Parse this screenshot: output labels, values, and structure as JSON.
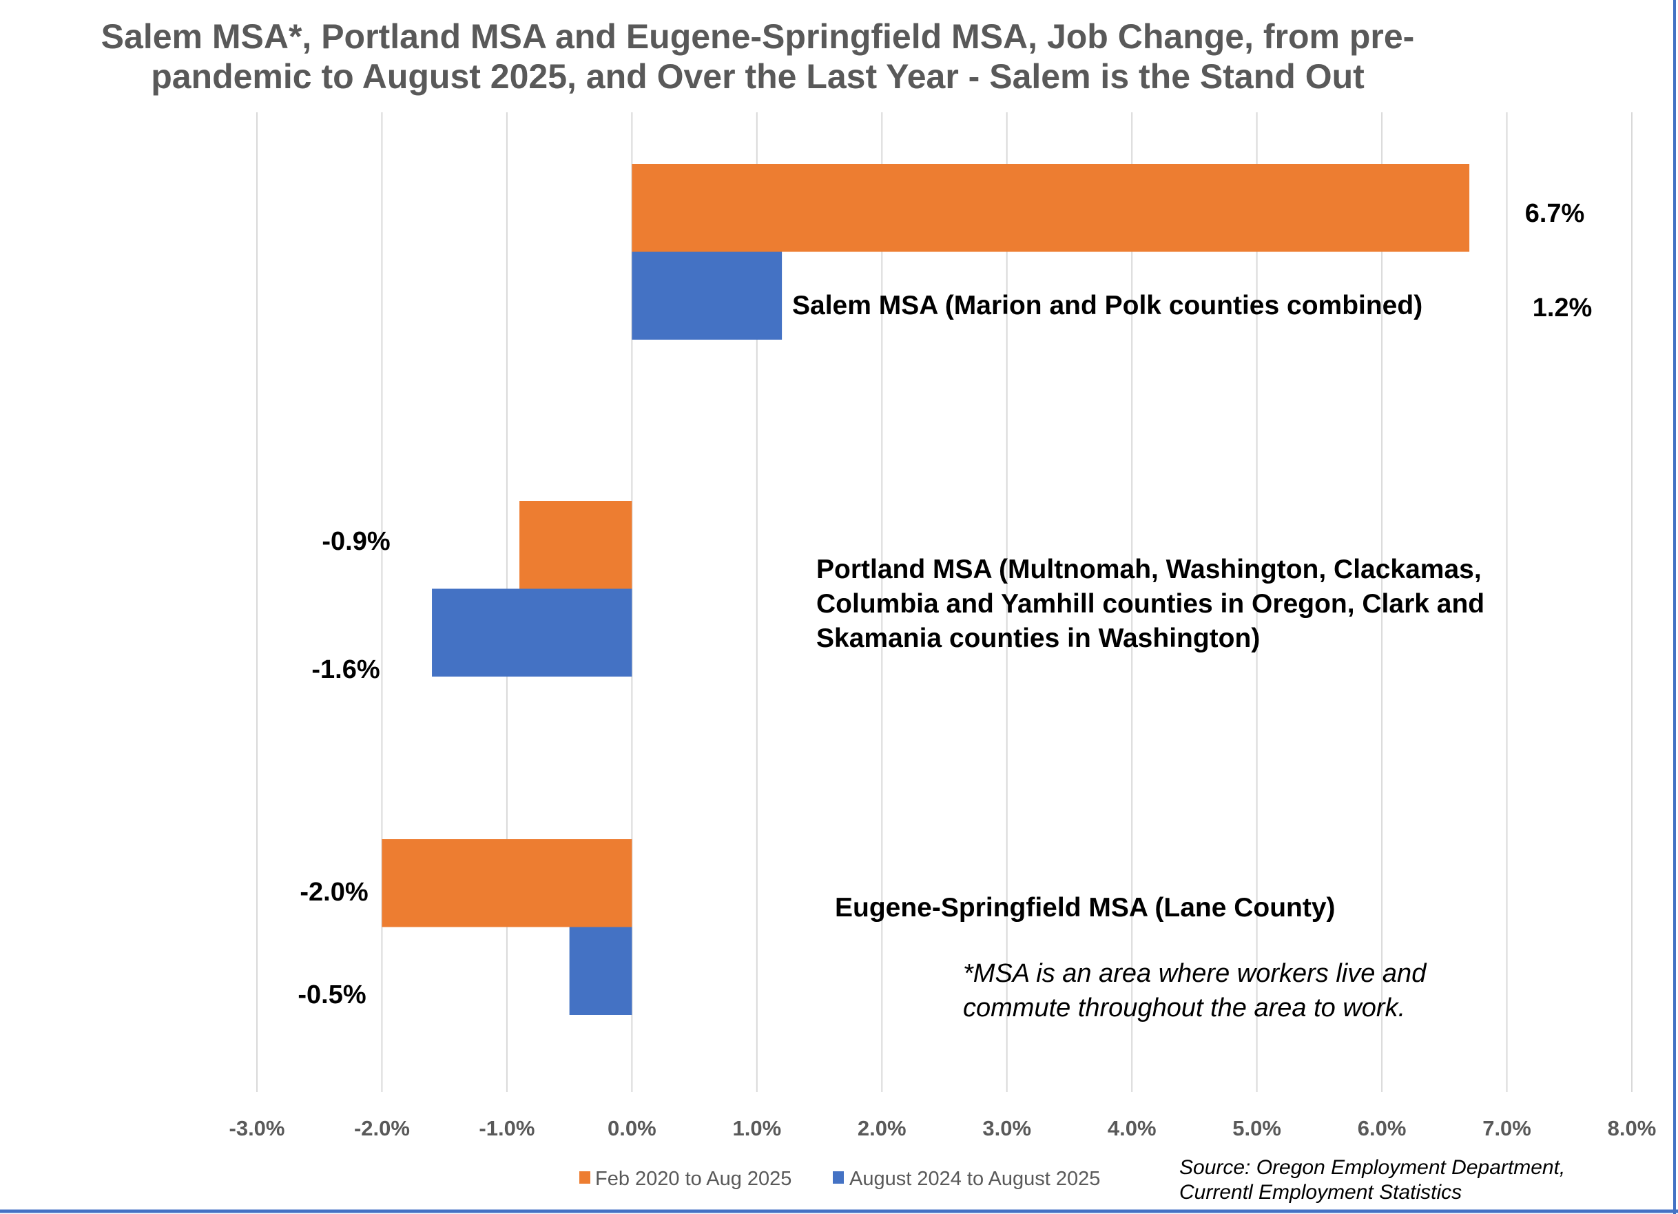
{
  "chart_data": {
    "type": "bar",
    "orientation": "horizontal",
    "title_lines": [
      "Salem MSA*, Portland MSA and Eugene-Springfield MSA, Job Change, from pre-",
      "pandemic to August 2025, and Over the Last Year - Salem is the Stand Out"
    ],
    "categories": [
      {
        "lines": [
          "Salem MSA (Marion and Polk counties combined)"
        ]
      },
      {
        "lines": [
          "Portland MSA (Multnomah, Washington, Clackamas,",
          "Columbia and Yamhill counties in Oregon, Clark and",
          "Skamania counties in Washington)"
        ]
      },
      {
        "lines": [
          "Eugene-Springfield MSA (Lane County)"
        ]
      }
    ],
    "series": [
      {
        "name": "Feb 2020 to Aug 2025",
        "color": "#ED7D31",
        "values": [
          6.7,
          -0.9,
          -2.0
        ],
        "labels": [
          "6.7%",
          "-0.9%",
          "-2.0%"
        ]
      },
      {
        "name": "August 2024 to August 2025",
        "color": "#4472C4",
        "values": [
          1.2,
          -1.6,
          -0.5
        ],
        "labels": [
          "1.2%",
          "-1.6%",
          "-0.5%"
        ]
      }
    ],
    "xlim": [
      -3.0,
      8.0
    ],
    "xticks": [
      "-3.0%",
      "-2.0%",
      "-1.0%",
      "0.0%",
      "1.0%",
      "2.0%",
      "3.0%",
      "4.0%",
      "5.0%",
      "6.0%",
      "7.0%",
      "8.0%"
    ],
    "grid": "vertical",
    "legend": "bottom",
    "footnote_lines": [
      "*MSA is an area where workers live and",
      "commute throughout the area to work."
    ],
    "source_lines": [
      "Source: Oregon Employment Department,",
      "Currentl Employment Statistics"
    ]
  }
}
